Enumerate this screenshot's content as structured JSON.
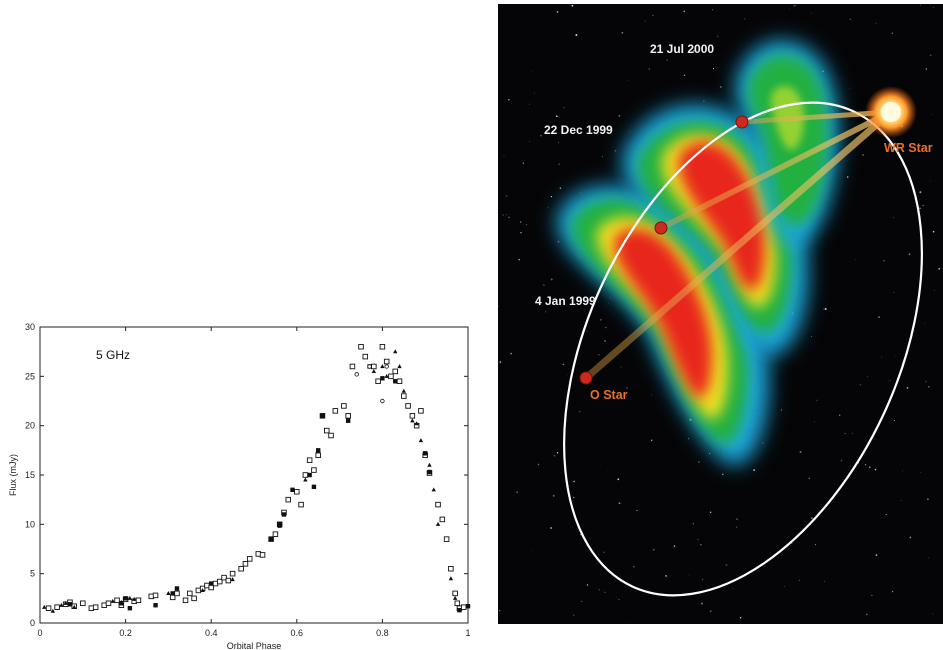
{
  "chart_data": {
    "type": "scatter",
    "title": "",
    "annotation": "5 GHz",
    "xlabel": "Orbital Phase",
    "ylabel": "Flux (mJy)",
    "xlim": [
      0,
      1
    ],
    "ylim": [
      0,
      30
    ],
    "xticks": [
      "0",
      "0.2",
      "0.4",
      "0.6",
      "0.8",
      "1"
    ],
    "yticks": [
      "0",
      "5",
      "10",
      "15",
      "20",
      "25",
      "30"
    ],
    "grid": false,
    "series": [
      {
        "marker": "open-square",
        "points": [
          [
            0.02,
            1.5
          ],
          [
            0.04,
            1.6
          ],
          [
            0.06,
            1.9
          ],
          [
            0.07,
            2.1
          ],
          [
            0.08,
            1.7
          ],
          [
            0.1,
            2.0
          ],
          [
            0.12,
            1.5
          ],
          [
            0.13,
            1.6
          ],
          [
            0.15,
            1.8
          ],
          [
            0.16,
            2.0
          ],
          [
            0.18,
            2.3
          ],
          [
            0.19,
            1.8
          ],
          [
            0.2,
            2.4
          ],
          [
            0.22,
            2.2
          ],
          [
            0.23,
            2.3
          ],
          [
            0.26,
            2.7
          ],
          [
            0.27,
            2.8
          ],
          [
            0.31,
            2.6
          ],
          [
            0.32,
            3.0
          ],
          [
            0.34,
            2.3
          ],
          [
            0.35,
            3.0
          ],
          [
            0.36,
            2.5
          ],
          [
            0.37,
            3.3
          ],
          [
            0.38,
            3.5
          ],
          [
            0.39,
            3.8
          ],
          [
            0.4,
            3.6
          ],
          [
            0.41,
            4.0
          ],
          [
            0.42,
            4.2
          ],
          [
            0.43,
            4.6
          ],
          [
            0.44,
            4.3
          ],
          [
            0.45,
            5.0
          ],
          [
            0.47,
            5.5
          ],
          [
            0.48,
            6.0
          ],
          [
            0.49,
            6.5
          ],
          [
            0.51,
            7.0
          ],
          [
            0.52,
            6.9
          ],
          [
            0.54,
            8.5
          ],
          [
            0.55,
            9.0
          ],
          [
            0.56,
            10.0
          ],
          [
            0.57,
            11.2
          ],
          [
            0.58,
            12.5
          ],
          [
            0.6,
            13.3
          ],
          [
            0.61,
            12.0
          ],
          [
            0.62,
            15.0
          ],
          [
            0.63,
            16.5
          ],
          [
            0.64,
            15.5
          ],
          [
            0.65,
            17.0
          ],
          [
            0.66,
            21.0
          ],
          [
            0.67,
            19.5
          ],
          [
            0.68,
            19.0
          ],
          [
            0.69,
            21.5
          ],
          [
            0.71,
            22.0
          ],
          [
            0.72,
            21.0
          ],
          [
            0.73,
            26.0
          ],
          [
            0.75,
            28.0
          ],
          [
            0.76,
            27.0
          ],
          [
            0.78,
            26.0
          ],
          [
            0.79,
            24.5
          ],
          [
            0.8,
            28.0
          ],
          [
            0.81,
            26.5
          ],
          [
            0.82,
            25.0
          ],
          [
            0.83,
            25.5
          ],
          [
            0.84,
            24.5
          ],
          [
            0.85,
            23.0
          ],
          [
            0.86,
            22.0
          ],
          [
            0.87,
            21.0
          ],
          [
            0.88,
            20.0
          ],
          [
            0.89,
            21.5
          ],
          [
            0.9,
            17.0
          ],
          [
            0.91,
            15.2
          ],
          [
            0.93,
            12.0
          ],
          [
            0.94,
            10.5
          ],
          [
            0.95,
            8.5
          ],
          [
            0.96,
            5.5
          ],
          [
            0.97,
            3.0
          ],
          [
            0.975,
            2.0
          ],
          [
            0.98,
            1.5
          ],
          [
            0.99,
            1.6
          ]
        ]
      },
      {
        "marker": "filled-square",
        "points": [
          [
            0.07,
            1.9
          ],
          [
            0.19,
            2.0
          ],
          [
            0.2,
            2.5
          ],
          [
            0.21,
            1.5
          ],
          [
            0.27,
            1.8
          ],
          [
            0.31,
            3.0
          ],
          [
            0.32,
            3.5
          ],
          [
            0.4,
            4.0
          ],
          [
            0.54,
            8.5
          ],
          [
            0.56,
            10.0
          ],
          [
            0.57,
            11.0
          ],
          [
            0.59,
            13.5
          ],
          [
            0.63,
            15.0
          ],
          [
            0.64,
            13.8
          ],
          [
            0.65,
            17.5
          ],
          [
            0.66,
            21.0
          ],
          [
            0.72,
            20.5
          ],
          [
            0.77,
            26.0
          ],
          [
            0.8,
            24.8
          ],
          [
            0.83,
            24.5
          ],
          [
            0.9,
            17.2
          ],
          [
            0.91,
            15.3
          ],
          [
            0.98,
            1.3
          ],
          [
            1.0,
            1.7
          ]
        ]
      },
      {
        "marker": "triangle",
        "points": [
          [
            0.01,
            1.6
          ],
          [
            0.03,
            1.2
          ],
          [
            0.05,
            1.8
          ],
          [
            0.06,
            2.0
          ],
          [
            0.08,
            1.6
          ],
          [
            0.17,
            2.2
          ],
          [
            0.19,
            2.1
          ],
          [
            0.21,
            2.5
          ],
          [
            0.22,
            2.4
          ],
          [
            0.3,
            3.0
          ],
          [
            0.38,
            3.3
          ],
          [
            0.45,
            4.4
          ],
          [
            0.56,
            9.8
          ],
          [
            0.62,
            14.5
          ],
          [
            0.78,
            25.5
          ],
          [
            0.8,
            26.0
          ],
          [
            0.81,
            25.0
          ],
          [
            0.83,
            27.5
          ],
          [
            0.84,
            26.0
          ],
          [
            0.85,
            23.5
          ],
          [
            0.87,
            20.5
          ],
          [
            0.88,
            20.2
          ],
          [
            0.89,
            18.5
          ],
          [
            0.91,
            16.0
          ],
          [
            0.92,
            13.5
          ],
          [
            0.93,
            10.0
          ],
          [
            0.96,
            4.5
          ],
          [
            0.97,
            2.5
          ]
        ]
      },
      {
        "marker": "open-circle",
        "points": [
          [
            0.74,
            25.2
          ],
          [
            0.77,
            26.0
          ],
          [
            0.8,
            22.5
          ],
          [
            0.81,
            26.0
          ]
        ]
      }
    ]
  },
  "orbit_diagram": {
    "labels": {
      "date_1": "21 Jul 2000",
      "date_2": "22 Dec 1999",
      "date_3": "4 Jan 1999",
      "wr_star": "WR Star",
      "o_star": "O Star"
    },
    "colors": {
      "background": "#050507",
      "orbit": "#ffffff",
      "star_label": "#e8722a",
      "o_star": "#cc2a1e"
    }
  }
}
